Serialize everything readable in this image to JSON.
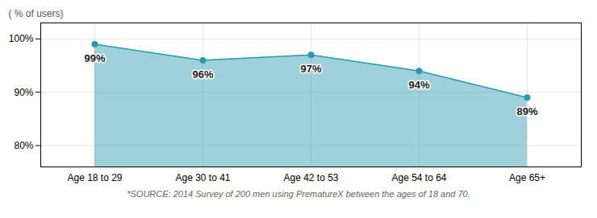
{
  "chart_data": {
    "type": "area",
    "ylabel": "( ​% of users)",
    "caption": "*SOURCE: 2014 Survey of 200 men using PrematureX between the ages of 18 and 70.",
    "categories": [
      "Age 18 to 29",
      "Age 30 to 41",
      "Age 42 to 53",
      "Age 54 to 64",
      "Age 65+"
    ],
    "values": [
      99,
      96,
      97,
      94,
      89
    ],
    "value_labels": [
      "99%",
      "96%",
      "97%",
      "94%",
      "89%"
    ],
    "data_labels": true,
    "color": "#2a9ab0",
    "ylim": [
      76,
      103
    ],
    "yticks": [
      {
        "value": 80,
        "label": "80%"
      },
      {
        "value": 90,
        "label": "90%"
      },
      {
        "value": 100,
        "label": "100%"
      }
    ],
    "grid": true
  }
}
